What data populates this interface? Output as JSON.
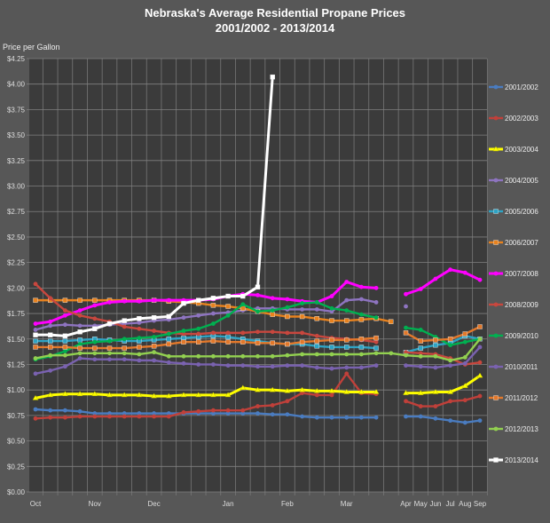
{
  "chart_data": {
    "type": "line",
    "title": "Nebraska's Average Residential Propane Prices",
    "subtitle": "2001/2002 - 2013/2014",
    "xlabel": "",
    "ylabel": "Price per Gallon",
    "ylim": [
      0,
      4.25
    ],
    "yticks": [
      "$0.00",
      "$0.25",
      "$0.50",
      "$0.75",
      "$1.00",
      "$1.25",
      "$1.50",
      "$1.75",
      "$2.00",
      "$2.25",
      "$2.50",
      "$2.75",
      "$3.00",
      "$3.25",
      "$3.50",
      "$3.75",
      "$4.00",
      "$4.25"
    ],
    "x_slots": 31,
    "x_ticks": [
      {
        "slot": 0,
        "label": "Oct"
      },
      {
        "slot": 4,
        "label": "Nov"
      },
      {
        "slot": 8,
        "label": "Dec"
      },
      {
        "slot": 13,
        "label": "Jan"
      },
      {
        "slot": 17,
        "label": "Feb"
      },
      {
        "slot": 21,
        "label": "Mar"
      },
      {
        "slot": 25,
        "label": "Apr"
      },
      {
        "slot": 26,
        "label": "May"
      },
      {
        "slot": 27,
        "label": "Jun"
      },
      {
        "slot": 28,
        "label": "Jul"
      },
      {
        "slot": 29,
        "label": "Aug"
      },
      {
        "slot": 30,
        "label": "Sep"
      }
    ],
    "grid": true,
    "legend_placement": "right",
    "series": [
      {
        "name": "2001/2002",
        "color": "#4a7cc0",
        "marker": "circle",
        "values": [
          0.81,
          0.8,
          0.8,
          0.79,
          0.77,
          0.77,
          0.77,
          0.77,
          0.77,
          0.77,
          0.77,
          0.77,
          0.77,
          0.77,
          0.77,
          0.77,
          0.76,
          0.76,
          0.74,
          0.73,
          0.73,
          0.73,
          0.73,
          0.73,
          null,
          0.74,
          0.74,
          0.72,
          0.7,
          0.68,
          0.7
        ]
      },
      {
        "name": "2002/2003",
        "color": "#c0403a",
        "marker": "circle",
        "values": [
          0.72,
          0.73,
          0.73,
          0.74,
          0.74,
          0.74,
          0.74,
          0.74,
          0.74,
          0.74,
          0.78,
          0.79,
          0.8,
          0.8,
          0.8,
          0.84,
          0.85,
          0.89,
          0.97,
          0.95,
          0.95,
          1.16,
          0.97,
          0.96,
          null,
          0.89,
          0.84,
          0.84,
          0.89,
          0.9,
          0.94
        ]
      },
      {
        "name": "2003/2004",
        "color": "#ffff00",
        "marker": "triangle",
        "values": [
          0.92,
          0.95,
          0.96,
          0.96,
          0.96,
          0.95,
          0.95,
          0.95,
          0.94,
          0.94,
          0.95,
          0.95,
          0.95,
          0.95,
          1.02,
          1.0,
          1.0,
          0.99,
          1.0,
          0.99,
          0.99,
          0.98,
          0.98,
          0.98,
          null,
          0.97,
          0.97,
          0.98,
          0.98,
          1.04,
          1.14
        ]
      },
      {
        "name": "2004/2005",
        "color": "#8e74c0",
        "marker": "circle",
        "values": [
          1.59,
          1.63,
          1.64,
          1.63,
          1.63,
          1.64,
          1.65,
          1.66,
          1.68,
          1.69,
          1.71,
          1.73,
          1.75,
          1.76,
          1.78,
          1.8,
          1.8,
          1.79,
          1.79,
          1.79,
          1.77,
          1.88,
          1.89,
          1.86,
          null,
          1.82,
          null,
          null,
          null,
          null,
          null
        ]
      },
      {
        "name": "2005/2006",
        "color": "#2ea3c4",
        "marker": "square",
        "values": [
          1.48,
          1.48,
          1.48,
          1.49,
          1.5,
          1.49,
          1.48,
          1.48,
          1.49,
          1.5,
          1.51,
          1.52,
          1.53,
          1.52,
          1.5,
          1.48,
          1.46,
          1.45,
          1.45,
          1.43,
          1.42,
          1.42,
          1.42,
          1.41,
          null,
          1.37,
          1.41,
          1.44,
          1.46,
          1.53,
          1.5
        ]
      },
      {
        "name": "2006/2007",
        "color": "#e8821e",
        "marker": "square",
        "values": [
          1.88,
          1.88,
          1.88,
          1.88,
          1.88,
          1.88,
          1.88,
          1.88,
          1.88,
          1.87,
          1.86,
          1.85,
          1.83,
          1.82,
          1.8,
          1.77,
          1.74,
          1.72,
          1.72,
          1.7,
          1.68,
          1.68,
          1.69,
          1.7,
          1.67,
          null,
          null,
          null,
          null,
          null,
          null
        ]
      },
      {
        "name": "2007/2008",
        "color": "#ff00ff",
        "marker": "circle",
        "values": [
          1.65,
          1.67,
          1.73,
          1.78,
          1.83,
          1.86,
          1.87,
          1.87,
          1.88,
          1.88,
          1.88,
          1.88,
          1.89,
          1.92,
          1.94,
          1.93,
          1.9,
          1.89,
          1.87,
          1.86,
          1.92,
          2.06,
          2.01,
          2.0,
          null,
          1.94,
          1.99,
          2.09,
          2.18,
          2.15,
          2.08
        ]
      },
      {
        "name": "2008/2009",
        "color": "#c8473e",
        "marker": "circle",
        "values": [
          2.04,
          1.9,
          1.78,
          1.73,
          1.7,
          1.67,
          1.62,
          1.6,
          1.58,
          1.56,
          1.55,
          1.55,
          1.56,
          1.56,
          1.56,
          1.57,
          1.57,
          1.56,
          1.56,
          1.53,
          1.51,
          1.5,
          1.49,
          1.47,
          null,
          1.37,
          1.36,
          1.35,
          1.31,
          1.25,
          1.27
        ]
      },
      {
        "name": "2009/2010",
        "color": "#00b050",
        "marker": "circle",
        "values": [
          1.3,
          1.33,
          1.38,
          1.45,
          1.47,
          1.48,
          1.5,
          1.51,
          1.52,
          1.55,
          1.58,
          1.6,
          1.65,
          1.73,
          1.84,
          1.77,
          1.78,
          1.81,
          1.85,
          1.86,
          1.8,
          1.78,
          1.74,
          1.71,
          null,
          1.61,
          1.59,
          1.52,
          1.44,
          1.47,
          1.5
        ]
      },
      {
        "name": "2010/2011",
        "color": "#7a62b0",
        "marker": "circle",
        "values": [
          1.16,
          1.19,
          1.23,
          1.31,
          1.3,
          1.3,
          1.3,
          1.29,
          1.29,
          1.27,
          1.26,
          1.25,
          1.25,
          1.24,
          1.24,
          1.23,
          1.23,
          1.24,
          1.24,
          1.22,
          1.21,
          1.22,
          1.22,
          1.24,
          null,
          1.24,
          1.23,
          1.22,
          1.24,
          1.26,
          1.42
        ]
      },
      {
        "name": "2011/2012",
        "color": "#e3782a",
        "marker": "square",
        "values": [
          1.42,
          1.42,
          1.42,
          1.41,
          1.41,
          1.41,
          1.41,
          1.42,
          1.43,
          1.45,
          1.47,
          1.47,
          1.48,
          1.47,
          1.47,
          1.46,
          1.46,
          1.45,
          1.47,
          1.48,
          1.49,
          1.49,
          1.5,
          1.51,
          null,
          1.56,
          1.48,
          1.49,
          1.5,
          1.55,
          1.62
        ]
      },
      {
        "name": "2012/2013",
        "color": "#92d050",
        "marker": "circle",
        "values": [
          1.31,
          1.34,
          1.34,
          1.36,
          1.36,
          1.36,
          1.36,
          1.35,
          1.37,
          1.33,
          1.33,
          1.33,
          1.33,
          1.33,
          1.33,
          1.33,
          1.33,
          1.34,
          1.35,
          1.35,
          1.35,
          1.35,
          1.35,
          1.36,
          1.36,
          1.34,
          1.33,
          1.33,
          1.29,
          1.32,
          1.5
        ]
      },
      {
        "name": "2013/2014",
        "color": "#ffffff",
        "marker": "square",
        "values": [
          1.54,
          1.54,
          1.53,
          1.57,
          1.6,
          1.65,
          1.68,
          1.7,
          1.71,
          1.72,
          1.85,
          1.88,
          1.9,
          1.92,
          1.92,
          2.01,
          4.07,
          null,
          null,
          null,
          null,
          null,
          null,
          null,
          null,
          null,
          null,
          null,
          null,
          null,
          null
        ]
      }
    ]
  }
}
